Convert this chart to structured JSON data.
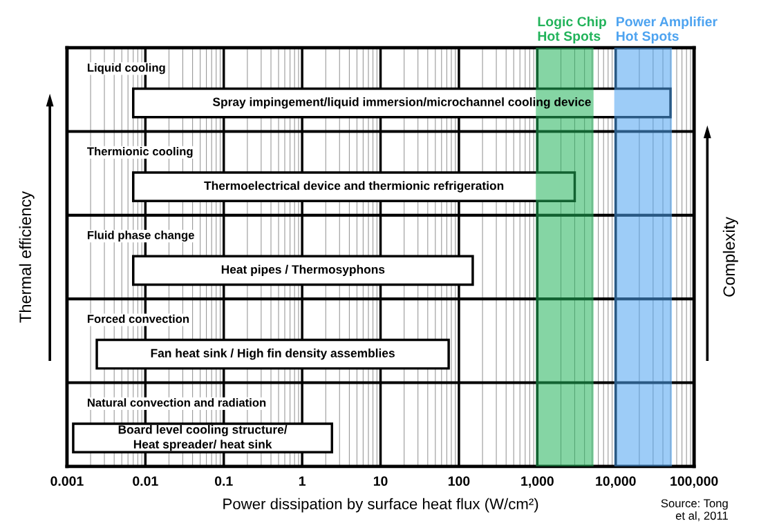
{
  "chart_data": {
    "type": "bar",
    "orientation": "horizontal",
    "log": "x",
    "categories": [
      "Liquid cooling",
      "Thermionic cooling",
      "Fluid phase change",
      "Forced convection",
      "Natural convection and radiation"
    ],
    "base": [
      0.007,
      0.007,
      0.007,
      0.0024,
      0.0012
    ],
    "values": [
      50000,
      3000,
      150,
      74,
      2.4
    ],
    "value_labels": [
      "Spray impingement/liquid immersion/microchannel cooling device",
      "Thermoelectrical device and thermionic refrigeration",
      "Heat pipes / Thermosyphons",
      "Fan heat sink / High fin density assemblies",
      "Board level cooling structure/\nHeat spreader/ heat sink"
    ],
    "color": "#ffffff",
    "xlim": [
      0.001,
      100000
    ],
    "xticks": [
      {
        "value": 0.001,
        "label": "0.001"
      },
      {
        "value": 0.01,
        "label": "0.01"
      },
      {
        "value": 0.1,
        "label": "0.1"
      },
      1,
      10,
      100,
      {
        "value": 1000,
        "label": "1,000"
      },
      {
        "value": 10000,
        "label": "10,000"
      },
      {
        "value": 100000,
        "label": "100,000"
      }
    ],
    "xlabel": "Power dissipation by surface heat flux (W/cm²)",
    "ylabel": "Thermal efficiency",
    "y2label": "Complexity",
    "grid": "x",
    "bands": [
      {
        "axis": "x",
        "from": 1000,
        "to": 5000,
        "label": "Logic Chip\nHot Spots",
        "color": "#22b35a"
      },
      {
        "axis": "x",
        "from": 10000,
        "to": 50000,
        "label": "Power Amplifier\nHot Spots",
        "color": "#4da3f0"
      }
    ],
    "annotations": [
      "Source: Tong\net al, 2011"
    ]
  }
}
